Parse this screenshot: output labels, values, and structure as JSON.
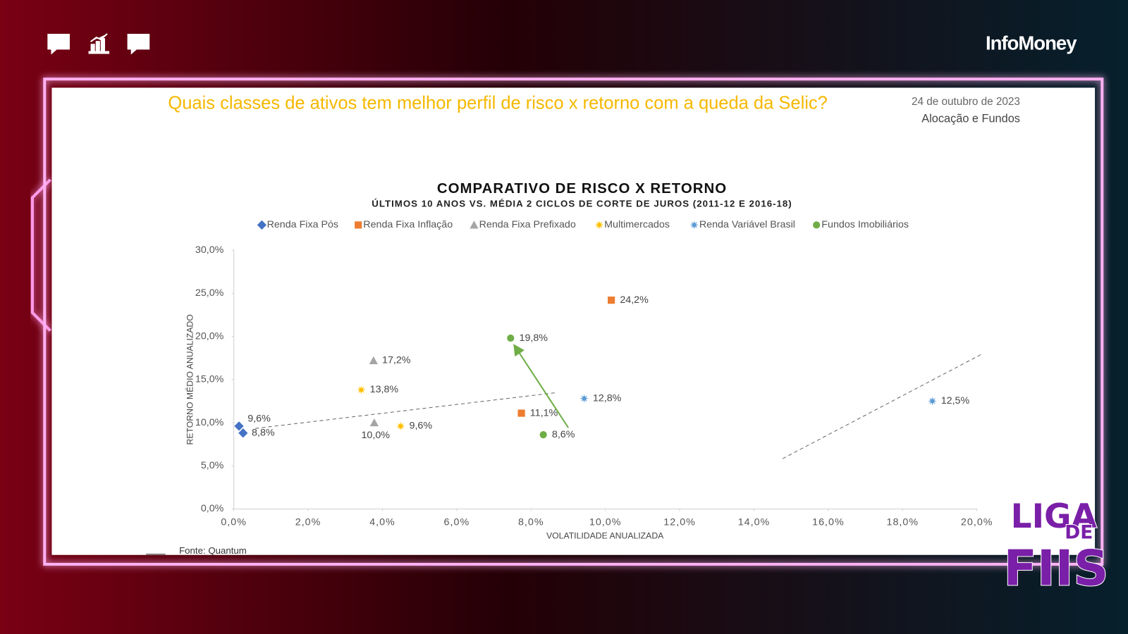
{
  "header": {
    "brand": "InfoMoney",
    "headline": "Quais classes de ativos tem melhor perfil de risco x retorno com a queda da Selic?",
    "date": "24 de outubro de 2023",
    "section": "Alocação e Fundos"
  },
  "chart_data": {
    "type": "scatter",
    "title": "COMPARATIVO DE RISCO X RETORNO",
    "subtitle": "ÚLTIMOS 10 ANOS VS. MÉDIA 2 CICLOS DE CORTE DE JUROS (2011-12 E 2016-18)",
    "x_label": "VOLATILIDADE ANUALIZADA",
    "y_label": "RETORNO MÉDIO ANUALIZADO",
    "xlim": [
      0,
      20
    ],
    "ylim": [
      0,
      30
    ],
    "xticks": [
      {
        "value": 0,
        "label": "0,0%"
      },
      {
        "value": 2,
        "label": "2,0%"
      },
      {
        "value": 4,
        "label": "4,0%"
      },
      {
        "value": 6,
        "label": "6,0%"
      },
      {
        "value": 8,
        "label": "8,0%"
      },
      {
        "value": 10,
        "label": "10,0%"
      },
      {
        "value": 12,
        "label": "12,0%"
      },
      {
        "value": 14,
        "label": "14,0%"
      },
      {
        "value": 16,
        "label": "16,0%"
      },
      {
        "value": 18,
        "label": "18,0%"
      },
      {
        "value": 20,
        "label": "20,0%"
      }
    ],
    "yticks": [
      {
        "value": 0,
        "label": "0,0%"
      },
      {
        "value": 5,
        "label": "5,0%"
      },
      {
        "value": 10,
        "label": "10,0%"
      },
      {
        "value": 15,
        "label": "15,0%"
      },
      {
        "value": 20,
        "label": "20,0%"
      },
      {
        "value": 25,
        "label": "25,0%"
      },
      {
        "value": 30,
        "label": "30,0%"
      }
    ],
    "legend": "top",
    "series": [
      {
        "name": "Renda Fixa Pós",
        "color": "#4472c4",
        "marker": "diamond",
        "x": [
          0.14,
          0.25
        ],
        "values": [
          9.6,
          8.8
        ],
        "value_labels": [
          "9,6%",
          "8,8%"
        ]
      },
      {
        "name": "Renda Fixa Inflação",
        "color": "#ed7d31",
        "marker": "square",
        "x": [
          10.16,
          7.74
        ],
        "values": [
          24.2,
          11.1
        ],
        "value_labels": [
          "24,2%",
          "11,1%"
        ]
      },
      {
        "name": "Renda Fixa Prefixado",
        "color": "#a5a5a5",
        "marker": "triangle",
        "x": [
          3.76,
          3.78
        ],
        "values": [
          17.2,
          10.0
        ],
        "value_labels": [
          "17,2%",
          "10,0%"
        ]
      },
      {
        "name": "Multimercados",
        "color": "#ffc000",
        "marker": "star",
        "x": [
          3.43,
          4.49
        ],
        "values": [
          13.8,
          9.6
        ],
        "value_labels": [
          "13,8%",
          "9,6%"
        ]
      },
      {
        "name": "Renda Variável Brasil",
        "color": "#5b9bd5",
        "marker": "star",
        "x": [
          9.43,
          18.8
        ],
        "values": [
          12.8,
          12.5
        ],
        "value_labels": [
          "12,8%",
          "12,5%"
        ]
      },
      {
        "name": "Fundos Imobiliários",
        "color": "#70ad47",
        "marker": "circle",
        "x": [
          7.45,
          8.33
        ],
        "values": [
          19.8,
          8.6
        ],
        "value_labels": [
          "19,8%",
          "8,6%"
        ]
      }
    ]
  },
  "source": "Fonte: Quantum",
  "logo": {
    "top": "LIGA",
    "middle": "DE",
    "bottom": "FIIS"
  }
}
